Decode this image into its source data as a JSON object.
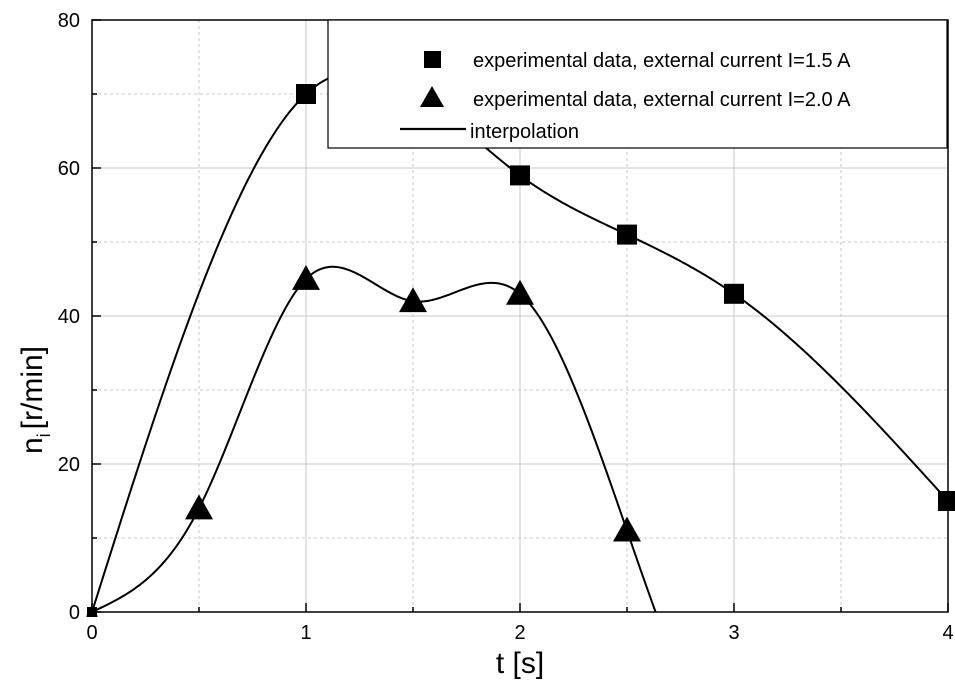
{
  "chart_data": {
    "type": "line",
    "xlabel": "t [s]",
    "ylabel": "n",
    "ylabel_subscript": "i",
    "ylabel_unit": "[r/min]",
    "xlim": [
      0,
      4
    ],
    "ylim": [
      0,
      80
    ],
    "x_ticks": [
      "0",
      "1",
      "2",
      "3",
      "4"
    ],
    "y_ticks": [
      "0",
      "20",
      "40",
      "60",
      "80"
    ],
    "grid": true,
    "legend_position": "top-right",
    "series": [
      {
        "name": "experimental data, external current I=1.5 A",
        "marker": "square",
        "x": [
          0,
          1,
          2,
          2.5,
          3,
          4
        ],
        "y": [
          0,
          70,
          59,
          51,
          43,
          15
        ]
      },
      {
        "name": "experimental data, external current I=2.0 A",
        "marker": "triangle",
        "x": [
          0,
          0.5,
          1,
          1.5,
          2,
          2.5
        ],
        "y": [
          0,
          14,
          45,
          42,
          43,
          11
        ]
      }
    ],
    "interpolation_label": "interpolation",
    "colors": {
      "line": "#000000",
      "grid": "#c8c8c8",
      "background": "#ffffff"
    }
  }
}
